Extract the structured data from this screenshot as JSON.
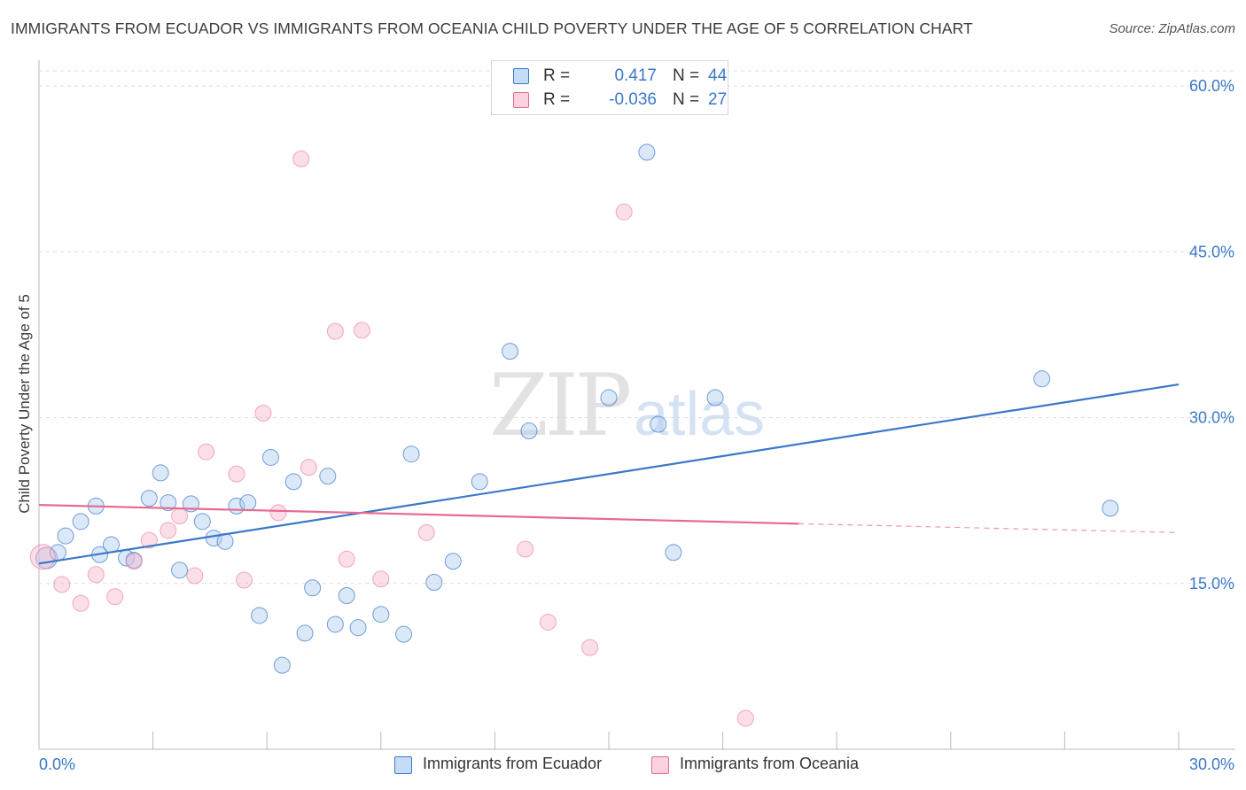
{
  "header": {
    "title": "IMMIGRANTS FROM ECUADOR VS IMMIGRANTS FROM OCEANIA CHILD POVERTY UNDER THE AGE OF 5 CORRELATION CHART",
    "source": "Source: ZipAtlas.com"
  },
  "watermark": {
    "zip": "ZIP",
    "atlas": "atlas"
  },
  "stats_legend": {
    "rows": [
      {
        "r_label": "R =",
        "r_value": "0.417",
        "n_label": "N =",
        "n_value": "44"
      },
      {
        "r_label": "R =",
        "r_value": "-0.036",
        "n_label": "N =",
        "n_value": "27"
      }
    ]
  },
  "colors": {
    "series_blue": "#3a78c9",
    "series_blue_fill": "#aecbf0",
    "series_pink": "#e7698f",
    "series_pink_fill": "#f7b8cb",
    "grid": "#dddddd",
    "tick_label": "#3a78c9"
  },
  "chart_data": {
    "type": "scatter",
    "title": "IMMIGRANTS FROM ECUADOR VS IMMIGRANTS FROM OCEANIA CHILD POVERTY UNDER THE AGE OF 5 CORRELATION CHART",
    "xlabel": "",
    "ylabel": "Child Poverty Under the Age of 5",
    "xlim": [
      0,
      30
    ],
    "ylim": [
      0,
      60
    ],
    "x_tick_labels": [
      "0.0%",
      "30.0%"
    ],
    "x_tick_values": [
      0,
      30
    ],
    "x_minor_ticks": [
      3,
      6,
      9,
      12,
      15,
      18,
      21,
      24,
      27,
      30
    ],
    "y_tick_labels": [
      "15.0%",
      "30.0%",
      "45.0%",
      "60.0%"
    ],
    "y_tick_values": [
      15,
      30,
      45,
      60
    ],
    "grid": true,
    "legend_position": "bottom",
    "series": [
      {
        "name": "Immigrants from Ecuador",
        "color": "#3a78c9",
        "points": [
          [
            0.2,
            17.3
          ],
          [
            0.5,
            17.8
          ],
          [
            0.7,
            19.3
          ],
          [
            1.1,
            20.6
          ],
          [
            1.5,
            22.0
          ],
          [
            1.6,
            17.6
          ],
          [
            1.9,
            18.5
          ],
          [
            2.3,
            17.3
          ],
          [
            2.5,
            17.1
          ],
          [
            2.9,
            22.7
          ],
          [
            3.2,
            25.0
          ],
          [
            3.4,
            22.3
          ],
          [
            3.7,
            16.2
          ],
          [
            4.0,
            22.2
          ],
          [
            4.3,
            20.6
          ],
          [
            4.6,
            19.1
          ],
          [
            4.9,
            18.8
          ],
          [
            5.2,
            22.0
          ],
          [
            5.5,
            22.3
          ],
          [
            5.8,
            12.1
          ],
          [
            6.1,
            26.4
          ],
          [
            6.4,
            7.6
          ],
          [
            6.7,
            24.2
          ],
          [
            7.0,
            10.5
          ],
          [
            7.2,
            14.6
          ],
          [
            7.6,
            24.7
          ],
          [
            7.8,
            11.3
          ],
          [
            8.1,
            13.9
          ],
          [
            8.4,
            11.0
          ],
          [
            9.0,
            12.2
          ],
          [
            9.6,
            10.4
          ],
          [
            9.8,
            26.7
          ],
          [
            10.4,
            15.1
          ],
          [
            10.9,
            17.0
          ],
          [
            11.6,
            24.2
          ],
          [
            12.4,
            36.0
          ],
          [
            12.9,
            28.8
          ],
          [
            15.0,
            31.8
          ],
          [
            16.0,
            54.0
          ],
          [
            16.3,
            29.4
          ],
          [
            16.7,
            17.8
          ],
          [
            17.8,
            31.8
          ],
          [
            26.4,
            33.5
          ],
          [
            28.2,
            21.8
          ]
        ],
        "trend": {
          "x": [
            0,
            30
          ],
          "y": [
            16.8,
            33.0
          ]
        }
      },
      {
        "name": "Immigrants from Oceania",
        "color": "#e7698f",
        "points": [
          [
            0.1,
            17.4
          ],
          [
            0.6,
            14.9
          ],
          [
            1.1,
            13.2
          ],
          [
            1.5,
            15.8
          ],
          [
            2.0,
            13.8
          ],
          [
            2.5,
            17.0
          ],
          [
            2.9,
            18.9
          ],
          [
            3.4,
            19.8
          ],
          [
            3.7,
            21.1
          ],
          [
            4.1,
            15.7
          ],
          [
            4.4,
            26.9
          ],
          [
            5.2,
            24.9
          ],
          [
            5.4,
            15.3
          ],
          [
            5.9,
            30.4
          ],
          [
            6.3,
            21.4
          ],
          [
            6.9,
            53.4
          ],
          [
            7.1,
            25.5
          ],
          [
            7.8,
            37.8
          ],
          [
            8.1,
            17.2
          ],
          [
            8.5,
            37.9
          ],
          [
            9.0,
            15.4
          ],
          [
            10.2,
            19.6
          ],
          [
            12.8,
            18.1
          ],
          [
            13.4,
            11.5
          ],
          [
            14.5,
            9.2
          ],
          [
            15.4,
            48.6
          ],
          [
            18.6,
            2.8
          ]
        ],
        "trend": {
          "x": [
            0,
            20
          ],
          "y": [
            22.1,
            20.4
          ]
        },
        "trend_dashed": {
          "x": [
            20,
            30
          ],
          "y": [
            20.4,
            19.6
          ]
        }
      }
    ]
  },
  "bottom_legend": {
    "items": [
      {
        "label": "Immigrants from Ecuador"
      },
      {
        "label": "Immigrants from Oceania"
      }
    ]
  }
}
